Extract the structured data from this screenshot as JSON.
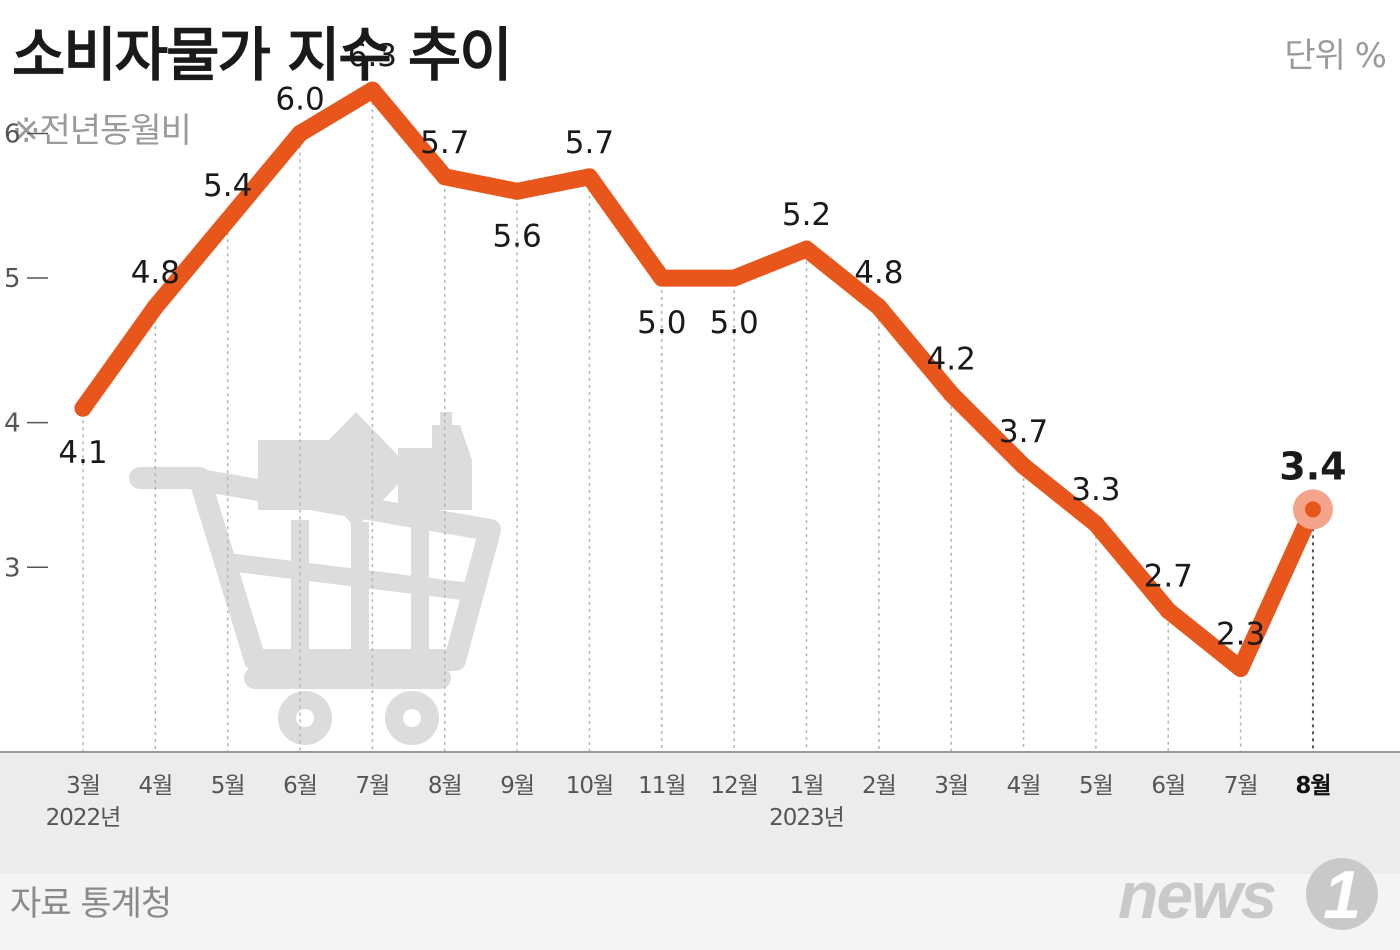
{
  "header": {
    "title": "소비자물가 지수 추이",
    "unit": "단위 %",
    "subtitle": "※전년동월비"
  },
  "footer": {
    "source": "자료 통계청",
    "logo_text": "news",
    "logo_number": "1"
  },
  "colors": {
    "line": "#e8561c",
    "highlight_dot": "#f3a48a",
    "gridline": "#b5b5b5",
    "axis_band": "#ececec",
    "icon": "#dcdcdc"
  },
  "decor": {
    "icon": "shopping-cart-icon"
  },
  "chart_data": {
    "type": "line",
    "title": "소비자물가 지수 추이",
    "subtitle": "※전년동월비",
    "unit": "단위 %",
    "categories": [
      "3월",
      "4월",
      "5월",
      "6월",
      "7월",
      "8월",
      "9월",
      "10월",
      "11월",
      "12월",
      "1월",
      "2월",
      "3월",
      "4월",
      "5월",
      "6월",
      "7월",
      "8월"
    ],
    "year_labels": [
      {
        "index": 0,
        "label": "2022년"
      },
      {
        "index": 10,
        "label": "2023년"
      }
    ],
    "series": [
      {
        "values": [
          4.1,
          4.8,
          5.4,
          6.0,
          6.3,
          5.7,
          5.6,
          5.7,
          5.0,
          5.0,
          5.2,
          4.8,
          4.2,
          3.7,
          3.3,
          2.7,
          2.3,
          3.4
        ]
      }
    ],
    "value_labels": [
      "4.1",
      "4.8",
      "5.4",
      "6.0",
      "6.3",
      "5.7",
      "5.6",
      "5.7",
      "5.0",
      "5.0",
      "5.2",
      "4.8",
      "4.2",
      "3.7",
      "3.3",
      "2.7",
      "2.3",
      "3.4"
    ],
    "y_ticks": [
      3,
      4,
      5,
      6
    ],
    "y_tick_labels": [
      "3",
      "4",
      "5",
      "6"
    ],
    "ylim": [
      1.75,
      6.75
    ],
    "highlight_index": 17,
    "label_below_indices": [
      0,
      6,
      8,
      9
    ],
    "grid": "vertical-dotted",
    "legend": "none"
  }
}
